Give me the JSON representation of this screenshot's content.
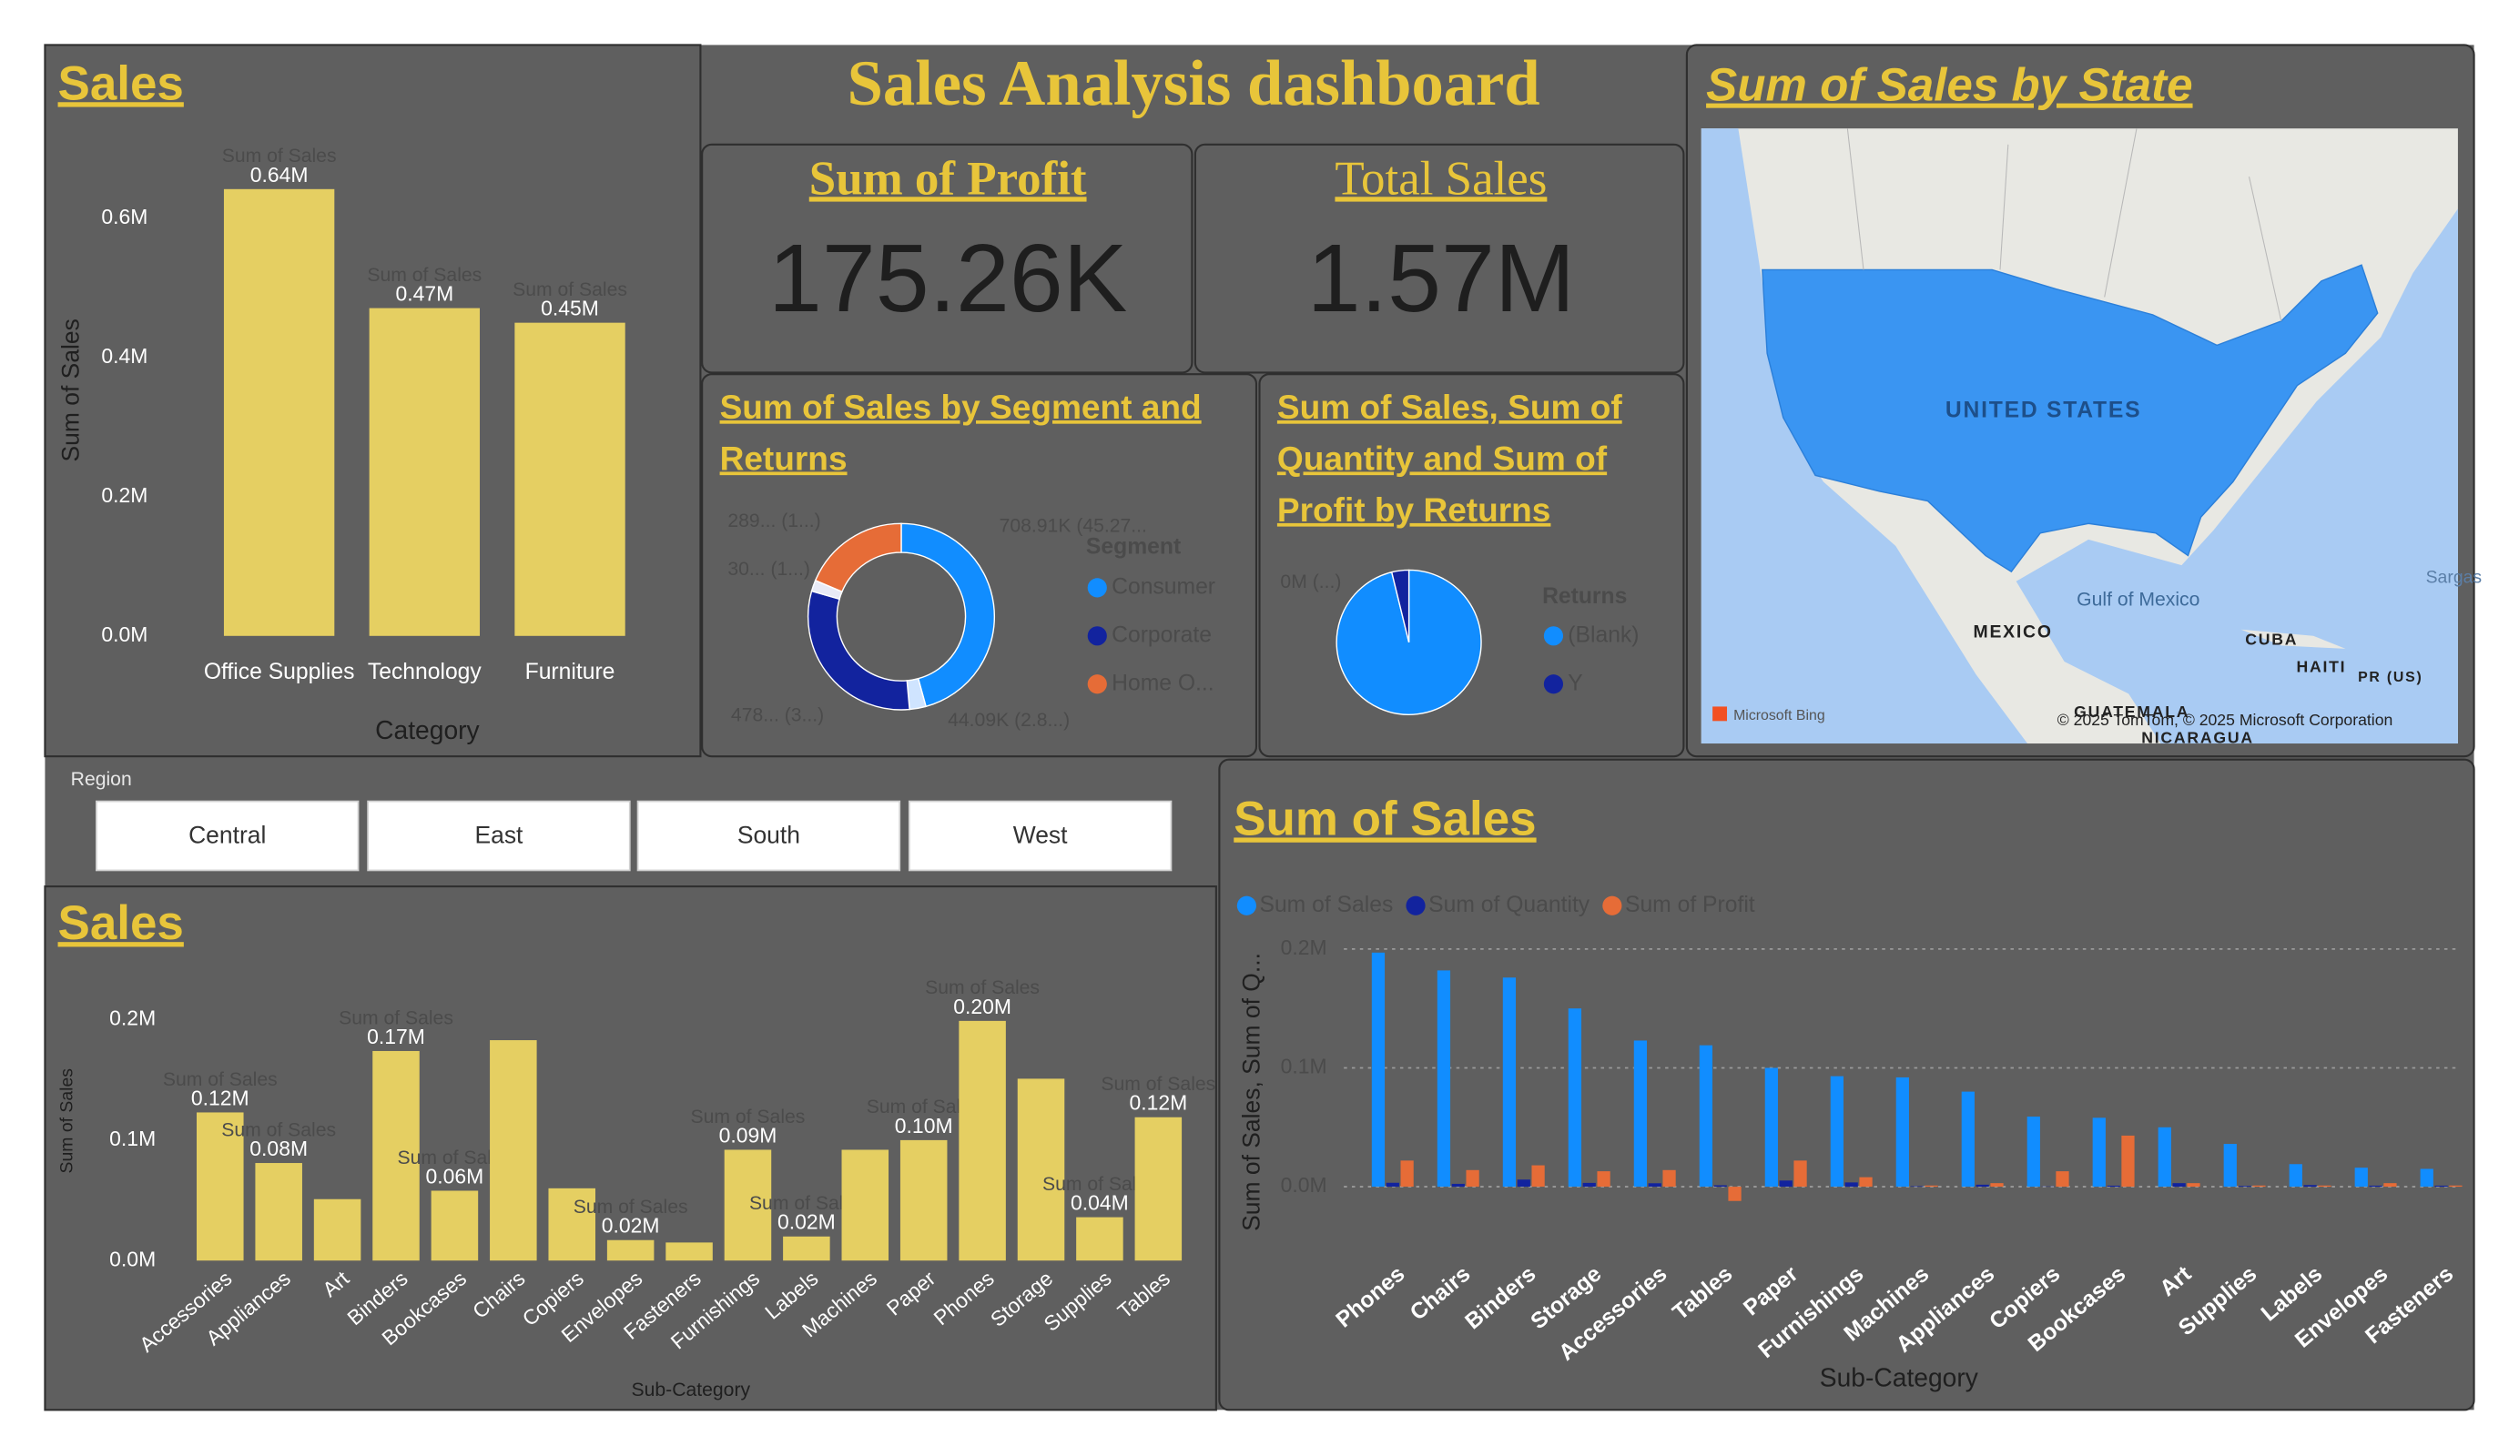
{
  "header": {
    "title": "Sales Analysis dashboard"
  },
  "kpis": [
    {
      "title": "Sum of Profit",
      "value": "175.26K"
    },
    {
      "title": "Total Sales",
      "value": "1.57M"
    }
  ],
  "slicer": {
    "title": "Region",
    "options": [
      "Central",
      "East",
      "South",
      "West"
    ]
  },
  "map": {
    "title": "Sum of Sales by State",
    "labels": [
      "UNITED STATES",
      "Gulf of Mexico",
      "MEXICO",
      "CUBA",
      "HAITI",
      "PR (US)",
      "Sargas",
      "GUATEMALA",
      "NICARAGUA",
      "Microsoft Bing",
      "© 2025 TomTom, © 2025 Microsoft Corporation"
    ]
  },
  "chart_data": [
    {
      "type": "bar",
      "title": "Sales",
      "x_label": "Category",
      "y_label": "Sum of Sales",
      "data_label_title": "Sum of Sales",
      "categories": [
        "Office Supplies",
        "Technology",
        "Furniture"
      ],
      "values": [
        642000,
        471000,
        450000
      ],
      "value_labels": [
        "0.64M",
        "0.47M",
        "0.45M"
      ],
      "color": "#e5cf62",
      "ylim": [
        0,
        650000
      ],
      "yticks": [
        {
          "value": 0,
          "label": "0.0M"
        },
        {
          "value": 200000,
          "label": "0.2M"
        },
        {
          "value": 400000,
          "label": "0.4M"
        },
        {
          "value": 600000,
          "label": "0.6M"
        }
      ],
      "grid": false
    },
    {
      "type": "bar",
      "title": "Sales",
      "x_label": "Sub-Category",
      "y_label": "Sum of Sales",
      "data_label_title": "Sum of Sales",
      "categories": [
        "Accessories",
        "Appliances",
        "Art",
        "Binders",
        "Bookcases",
        "Chairs",
        "Copiers",
        "Envelopes",
        "Fasteners",
        "Furnishings",
        "Labels",
        "Machines",
        "Paper",
        "Phones",
        "Storage",
        "Supplies",
        "Tables"
      ],
      "values": [
        123000,
        81000,
        51000,
        174000,
        58000,
        183000,
        60000,
        17000,
        15000,
        92000,
        20000,
        92000,
        100000,
        199000,
        151000,
        36000,
        119000
      ],
      "value_labels": [
        "0.12M",
        "0.08M",
        null,
        "0.17M",
        "0.06M",
        null,
        null,
        "0.02M",
        null,
        "0.09M",
        "0.02M",
        null,
        "0.10M",
        "0.20M",
        null,
        "0.04M",
        "0.12M"
      ],
      "color": "#e5cf62",
      "ylim": [
        0,
        210000
      ],
      "yticks": [
        {
          "value": 0,
          "label": "0.0M"
        },
        {
          "value": 100000,
          "label": "0.1M"
        },
        {
          "value": 200000,
          "label": "0.2M"
        }
      ],
      "grid": false
    },
    {
      "type": "bar",
      "title": "Sum of Sales",
      "x_label": "Sub-Category",
      "y_label": "Sum of Sales, Sum of Q...",
      "categories": [
        "Phones",
        "Chairs",
        "Binders",
        "Storage",
        "Accessories",
        "Tables",
        "Paper",
        "Furnishings",
        "Machines",
        "Appliances",
        "Copiers",
        "Bookcases",
        "Art",
        "Supplies",
        "Labels",
        "Envelopes",
        "Fasteners"
      ],
      "series": [
        {
          "name": "Sum of Sales",
          "color": "#118dff",
          "values": [
            197000,
            182000,
            176000,
            150000,
            123000,
            119000,
            100000,
            93000,
            92000,
            80000,
            59000,
            58000,
            50000,
            36000,
            19000,
            16000,
            15000
          ]
        },
        {
          "name": "Sum of Quantity",
          "color": "#12239e",
          "values": [
            3300,
            2400,
            6000,
            3200,
            2900,
            1200,
            5200,
            3600,
            440,
            1700,
            230,
            870,
            3000,
            650,
            1400,
            900,
            900
          ]
        },
        {
          "name": "Sum of Profit",
          "color": "#e66c37",
          "values": [
            22000,
            14000,
            18000,
            13000,
            14000,
            -12000,
            22000,
            8000,
            1000,
            3000,
            13000,
            43000,
            3000,
            1000,
            1000,
            3000,
            1000
          ]
        }
      ],
      "ylim": [
        -15000,
        200000
      ],
      "yticks": [
        {
          "value": 0,
          "label": "0.0M"
        },
        {
          "value": 100000,
          "label": "0.1M"
        },
        {
          "value": 200000,
          "label": "0.2M"
        }
      ],
      "grid": true
    },
    {
      "type": "donut",
      "title": "Sum of Sales by Segment and Returns",
      "values": [
        708910,
        44090,
        478000,
        30000,
        289000
      ],
      "value_labels": [
        "708.91K (45.27...",
        "44.09K (2.8...)",
        "478... (3...)",
        "30... (1...)",
        "289... (1...)"
      ],
      "colors": [
        "#118dff",
        "#cfe4ff",
        "#12239e",
        "#e8eaf6",
        "#e66c37"
      ],
      "legend": {
        "title": "Segment",
        "items": [
          {
            "name": "Consumer",
            "color": "#118dff"
          },
          {
            "name": "Corporate",
            "color": "#12239e"
          },
          {
            "name": "Home O...",
            "color": "#e66c37"
          }
        ]
      }
    },
    {
      "type": "pie",
      "title": "Sum of Sales, Sum of Quantity and Sum of Profit by Returns",
      "annotation": "0M (...)",
      "values": [
        1510000,
        60000
      ],
      "colors": [
        "#118dff",
        "#12239e"
      ],
      "legend": {
        "title": "Returns",
        "items": [
          {
            "name": "(Blank)",
            "color": "#118dff"
          },
          {
            "name": "Y",
            "color": "#12239e"
          }
        ]
      }
    }
  ]
}
